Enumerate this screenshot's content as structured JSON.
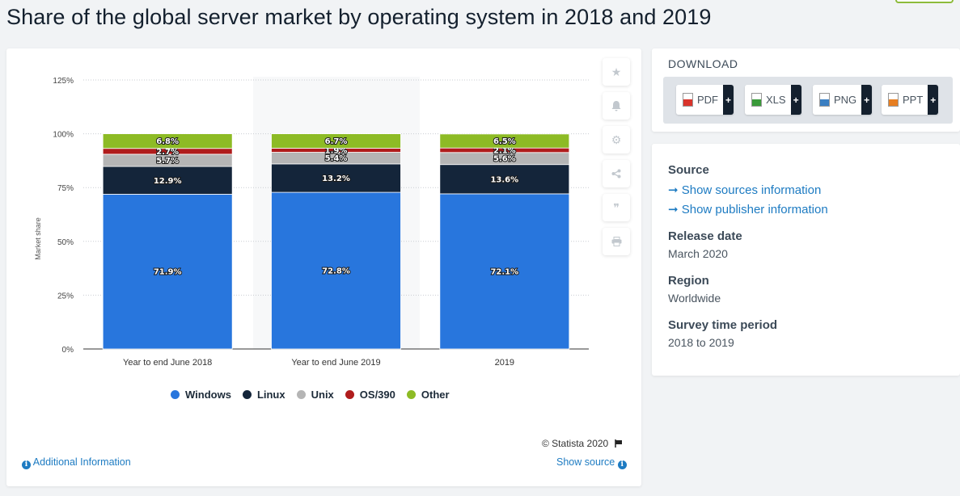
{
  "page": {
    "title": "Share of the global server market by operating system in 2018 and 2019"
  },
  "chart_data": {
    "type": "bar",
    "stacked": true,
    "categories": [
      "Year to end June 2018",
      "Year to end June 2019",
      "2019"
    ],
    "series": [
      {
        "name": "Windows",
        "color": "#2876dd",
        "values": [
          71.9,
          72.8,
          72.1
        ],
        "labels": [
          "71.9%",
          "72.8%",
          "72.1%"
        ]
      },
      {
        "name": "Linux",
        "color": "#14253a",
        "values": [
          12.9,
          13.2,
          13.6
        ],
        "labels": [
          "12.9%",
          "13.2%",
          "13.6%"
        ]
      },
      {
        "name": "Unix",
        "color": "#b5b5b5",
        "values": [
          5.7,
          5.4,
          5.6
        ],
        "labels": [
          "5.7%",
          "5.4%",
          "5.6%"
        ]
      },
      {
        "name": "OS/390",
        "color": "#b01c1c",
        "values": [
          2.7,
          1.9,
          2.1
        ],
        "labels": [
          "2.7%",
          "1.9%",
          "2.1%"
        ]
      },
      {
        "name": "Other",
        "color": "#8dbb25",
        "values": [
          6.8,
          6.7,
          6.5
        ],
        "labels": [
          "6.8%",
          "6.7%",
          "6.5%"
        ]
      }
    ],
    "ylabel": "Market share",
    "xlabel": "",
    "ylim": [
      0,
      125
    ],
    "yticks": [
      0,
      25,
      50,
      75,
      100,
      125
    ],
    "ytick_labels": [
      "0%",
      "25%",
      "50%",
      "75%",
      "100%",
      "125%"
    ],
    "grid": true,
    "legend_position": "bottom"
  },
  "chart_footer": {
    "copyright": "© Statista 2020",
    "additional_info": "Additional Information",
    "show_source": "Show source"
  },
  "toolbar_icons": [
    "star-icon",
    "bell-icon",
    "gear-icon",
    "share-icon",
    "quote-icon",
    "print-icon"
  ],
  "download": {
    "title": "DOWNLOAD",
    "buttons": [
      {
        "label": "PDF",
        "plus": "+",
        "color": "#d9342b"
      },
      {
        "label": "XLS",
        "plus": "+",
        "color": "#3a9a3a"
      },
      {
        "label": "PNG",
        "plus": "+",
        "color": "#3a7fc2"
      },
      {
        "label": "PPT",
        "plus": "+",
        "color": "#e67e22"
      }
    ]
  },
  "details": {
    "source_label": "Source",
    "sources_link": "➞ Show sources information",
    "publisher_link": "➞ Show publisher information",
    "release_label": "Release date",
    "release_value": "March 2020",
    "region_label": "Region",
    "region_value": "Worldwide",
    "period_label": "Survey time period",
    "period_value": "2018 to 2019"
  }
}
